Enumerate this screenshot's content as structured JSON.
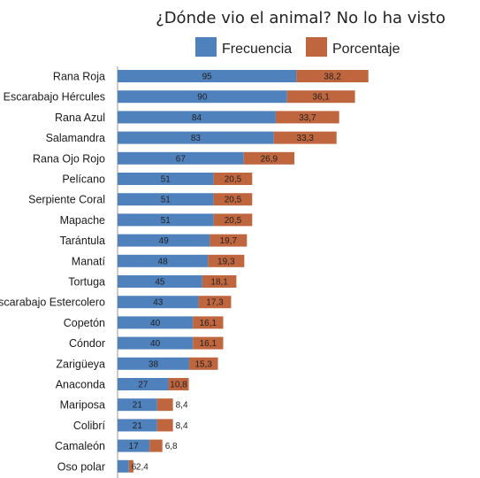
{
  "chart_data": {
    "type": "bar",
    "orientation": "horizontal",
    "stacked": true,
    "title": "¿Dónde vio el animal? No lo ha visto",
    "legend_position": "top",
    "grid": false,
    "categories": [
      "Rana Roja",
      "Escarabajo Hércules",
      "Rana Azul",
      "Salamandra",
      "Rana Ojo Rojo",
      "Pelícano",
      "Serpiente Coral",
      "Mapache",
      "Tarántula",
      "Manatí",
      "Tortuga",
      "Escarabajo Estercolero",
      "Copetón",
      "Cóndor",
      "Zarigüeya",
      "Anaconda",
      "Mariposa",
      "Colibrí",
      "Camaleón",
      "Oso polar"
    ],
    "series": [
      {
        "name": "Frecuencia",
        "color": "#4f81bd",
        "values": [
          95,
          90,
          84,
          83,
          67,
          51,
          51,
          51,
          49,
          48,
          45,
          43,
          40,
          40,
          38,
          27,
          21,
          21,
          17,
          6
        ],
        "labels": [
          "95",
          "90",
          "84",
          "83",
          "67",
          "51",
          "51",
          "51",
          "49",
          "48",
          "45",
          "43",
          "40",
          "40",
          "38",
          "27",
          "21",
          "21",
          "17",
          "6"
        ]
      },
      {
        "name": "Porcentaje",
        "color": "#c0663f",
        "values": [
          38.2,
          36.1,
          33.7,
          33.3,
          26.9,
          20.5,
          20.5,
          20.5,
          19.7,
          19.3,
          18.1,
          17.3,
          16.1,
          16.1,
          15.3,
          10.8,
          8.4,
          8.4,
          6.8,
          2.4
        ],
        "labels": [
          "38,2",
          "36,1",
          "33,7",
          "33,3",
          "26,9",
          "20,5",
          "20,5",
          "20,5",
          "19,7",
          "19,3",
          "18,1",
          "17,3",
          "16,1",
          "16,1",
          "15,3",
          "10,8",
          "8,4",
          "8,4",
          "6,8",
          "2,4"
        ]
      }
    ]
  }
}
